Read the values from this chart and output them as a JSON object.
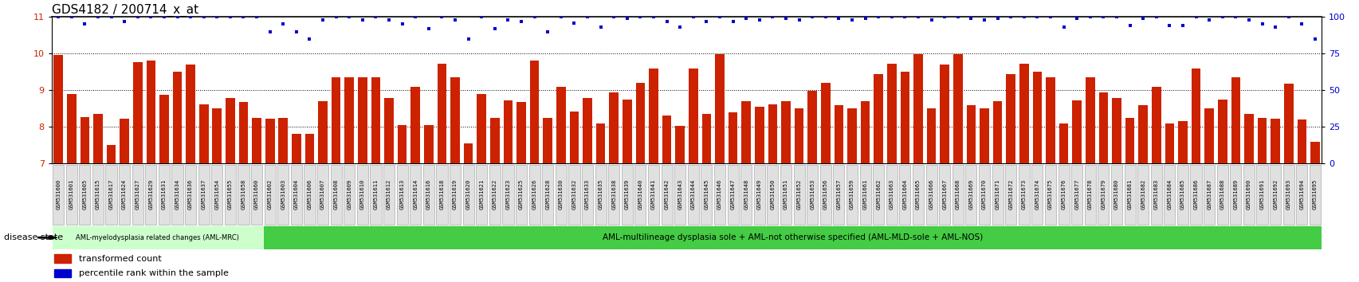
{
  "title": "GDS4182 / 200714_x_at",
  "samples": [
    "GSM531600",
    "GSM531601",
    "GSM531605",
    "GSM531615",
    "GSM531617",
    "GSM531624",
    "GSM531627",
    "GSM531629",
    "GSM531631",
    "GSM531634",
    "GSM531636",
    "GSM531637",
    "GSM531654",
    "GSM531655",
    "GSM531658",
    "GSM531660",
    "GSM531602",
    "GSM531603",
    "GSM531604",
    "GSM531606",
    "GSM531607",
    "GSM531608",
    "GSM531609",
    "GSM531610",
    "GSM531611",
    "GSM531612",
    "GSM531613",
    "GSM531614",
    "GSM531616",
    "GSM531618",
    "GSM531619",
    "GSM531620",
    "GSM531621",
    "GSM531622",
    "GSM531623",
    "GSM531625",
    "GSM531626",
    "GSM531628",
    "GSM531630",
    "GSM531632",
    "GSM531633",
    "GSM531635",
    "GSM531638",
    "GSM531639",
    "GSM531640",
    "GSM531641",
    "GSM531642",
    "GSM531643",
    "GSM531644",
    "GSM531645",
    "GSM531646",
    "GSM531647",
    "GSM531648",
    "GSM531649",
    "GSM531650",
    "GSM531651",
    "GSM531652",
    "GSM531653",
    "GSM531656",
    "GSM531657",
    "GSM531659",
    "GSM531661",
    "GSM531662",
    "GSM531663",
    "GSM531664",
    "GSM531665",
    "GSM531666",
    "GSM531667",
    "GSM531668",
    "GSM531669",
    "GSM531670",
    "GSM531671",
    "GSM531672",
    "GSM531673",
    "GSM531674",
    "GSM531675",
    "GSM531676",
    "GSM531677",
    "GSM531678",
    "GSM531679",
    "GSM531680",
    "GSM531681",
    "GSM531682",
    "GSM531683",
    "GSM531684",
    "GSM531685",
    "GSM531686",
    "GSM531687",
    "GSM531688",
    "GSM531689",
    "GSM531690",
    "GSM531691",
    "GSM531692",
    "GSM531693",
    "GSM531694",
    "GSM531695"
  ],
  "bar_values": [
    9.97,
    8.89,
    8.27,
    8.35,
    7.51,
    8.22,
    9.77,
    9.82,
    8.88,
    9.5,
    9.7,
    8.62,
    8.5,
    8.78,
    8.69,
    8.24,
    8.22,
    8.25,
    7.82,
    7.82,
    8.7,
    9.35,
    9.35,
    9.35,
    9.35,
    8.78,
    8.05,
    9.1,
    8.05,
    9.73,
    9.35,
    7.55,
    8.89,
    8.25,
    8.72,
    8.68,
    9.82,
    8.25,
    9.1,
    8.42,
    8.78,
    8.1,
    8.95,
    8.75,
    9.2,
    9.6,
    8.3,
    8.02,
    9.6,
    8.35,
    9.98,
    8.4,
    8.7,
    8.55,
    8.62,
    8.7,
    8.5,
    8.98,
    9.2,
    8.6,
    8.5,
    8.7,
    9.45,
    9.73,
    9.5,
    9.98,
    8.5,
    9.7,
    9.98,
    8.6,
    8.5,
    8.7,
    9.45,
    9.73,
    9.5,
    9.35,
    8.1,
    8.72,
    9.35,
    8.95,
    8.78,
    8.25,
    8.6,
    9.1,
    8.09,
    8.15,
    9.6,
    8.5,
    8.75,
    9.35,
    8.35,
    8.25,
    8.22,
    9.17,
    8.2,
    7.6
  ],
  "percentile_values": [
    100,
    100,
    95,
    100,
    100,
    97,
    100,
    100,
    100,
    100,
    100,
    100,
    100,
    100,
    100,
    100,
    90,
    95,
    90,
    85,
    98,
    100,
    100,
    98,
    100,
    98,
    95,
    100,
    92,
    100,
    98,
    85,
    100,
    92,
    98,
    97,
    100,
    90,
    100,
    96,
    100,
    93,
    100,
    99,
    100,
    100,
    97,
    93,
    100,
    97,
    100,
    97,
    99,
    98,
    100,
    99,
    98,
    100,
    100,
    99,
    98,
    99,
    100,
    100,
    100,
    100,
    98,
    100,
    100,
    99,
    98,
    99,
    100,
    100,
    100,
    100,
    93,
    99,
    100,
    100,
    100,
    94,
    99,
    100,
    94,
    94,
    100,
    98,
    100,
    100,
    98,
    95,
    93,
    100,
    95,
    85
  ],
  "bar_color": "#cc2200",
  "dot_color": "#0000cc",
  "ylim_left": [
    7,
    11
  ],
  "ylim_right": [
    0,
    100
  ],
  "yticks_left": [
    7,
    8,
    9,
    10,
    11
  ],
  "yticks_right": [
    0,
    25,
    50,
    75,
    100
  ],
  "group1_count": 16,
  "group1_label": "AML-myelodysplasia related changes (AML-MRC)",
  "group1_color": "#ccffcc",
  "group2_label": "AML-multilineage dysplasia sole + AML-not otherwise specified (AML-MLD-sole + AML-NOS)",
  "group2_color": "#44cc44",
  "disease_state_label": "disease state",
  "legend_bar_label": "transformed count",
  "legend_dot_label": "percentile rank within the sample",
  "background_color": "#ffffff",
  "plot_bg_color": "#ffffff",
  "title_fontsize": 11,
  "tick_fontsize": 5.0,
  "bar_width": 0.7,
  "baseline": 7
}
